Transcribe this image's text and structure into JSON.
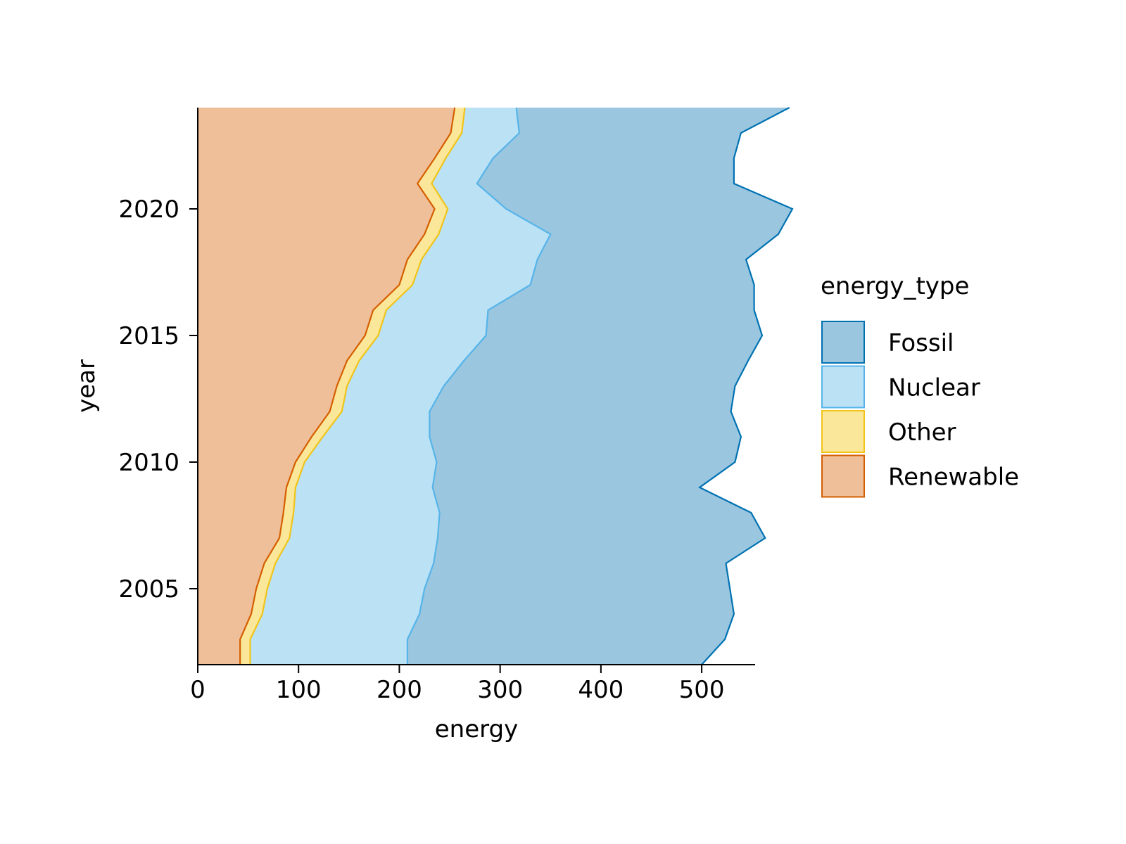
{
  "chart_data": {
    "type": "area",
    "orientation": "horizontal-stacked",
    "xlabel": "energy",
    "ylabel": "year",
    "xlim": [
      0,
      553
    ],
    "ylim": [
      2002,
      2024
    ],
    "xticks": [
      0,
      100,
      200,
      300,
      400,
      500
    ],
    "yticks": [
      2005,
      2010,
      2015,
      2020
    ],
    "years": [
      2002,
      2003,
      2004,
      2005,
      2006,
      2007,
      2008,
      2009,
      2010,
      2011,
      2012,
      2013,
      2014,
      2015,
      2016,
      2017,
      2018,
      2019,
      2020,
      2021,
      2022,
      2023,
      2024
    ],
    "stack_order": [
      "Renewable",
      "Other",
      "Nuclear",
      "Fossil"
    ],
    "series": [
      {
        "name": "Renewable",
        "color": "#D55E00",
        "fill": "#EFBF99",
        "values": [
          42,
          42,
          53,
          58,
          66,
          81,
          85,
          88,
          97,
          113,
          131,
          138,
          148,
          166,
          174,
          200,
          208,
          225,
          235,
          218,
          235,
          251,
          255
        ]
      },
      {
        "name": "Other",
        "color": "#F0C419",
        "fill": "#FBE79A",
        "values": [
          10,
          10,
          11,
          11,
          11,
          10,
          10,
          9,
          9,
          11,
          12,
          10,
          12,
          13,
          13,
          13,
          14,
          14,
          13,
          14,
          11,
          11,
          10
        ]
      },
      {
        "name": "Nuclear",
        "color": "#56B4E9",
        "fill": "#BBE1F5",
        "values": [
          156,
          156,
          156,
          156,
          157,
          147,
          145,
          136,
          131,
          106,
          87,
          96,
          104,
          107,
          101,
          117,
          115,
          111,
          58,
          45,
          47,
          57,
          51
        ]
      },
      {
        "name": "Fossil",
        "color": "#0072B2",
        "fill": "#9AC6DF",
        "values": [
          292,
          315,
          312,
          303,
          290,
          325,
          309,
          265,
          296,
          309,
          299,
          289,
          282,
          274,
          264,
          222,
          207,
          226,
          284,
          255,
          239,
          220,
          271
        ]
      }
    ],
    "legend": {
      "title": "energy_type",
      "entries": [
        "Fossil",
        "Nuclear",
        "Other",
        "Renewable"
      ],
      "position": "right"
    },
    "grid": false
  }
}
